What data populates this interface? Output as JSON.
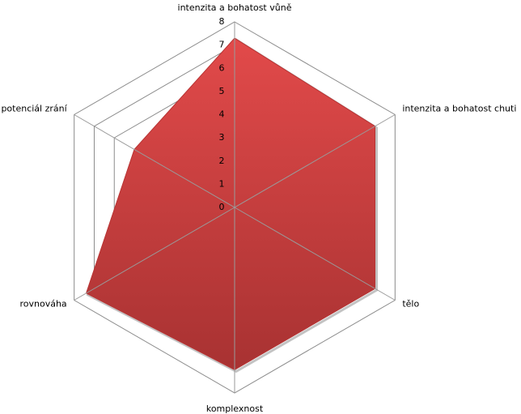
{
  "chart_data": {
    "type": "radar",
    "categories": [
      "intenzita a bohatost vůně",
      "intenzita a bohatost chuti",
      "tělo",
      "komplexnost",
      "rovnováha",
      "potenciál zrání"
    ],
    "series": [
      {
        "color": "#c83c3c",
        "values": [
          7.3,
          7,
          7,
          7,
          7.4,
          5
        ]
      }
    ],
    "rlim": [
      0,
      8
    ],
    "rticks": [
      0,
      1,
      2,
      3,
      4,
      5,
      6,
      7,
      8
    ],
    "grid": true
  }
}
